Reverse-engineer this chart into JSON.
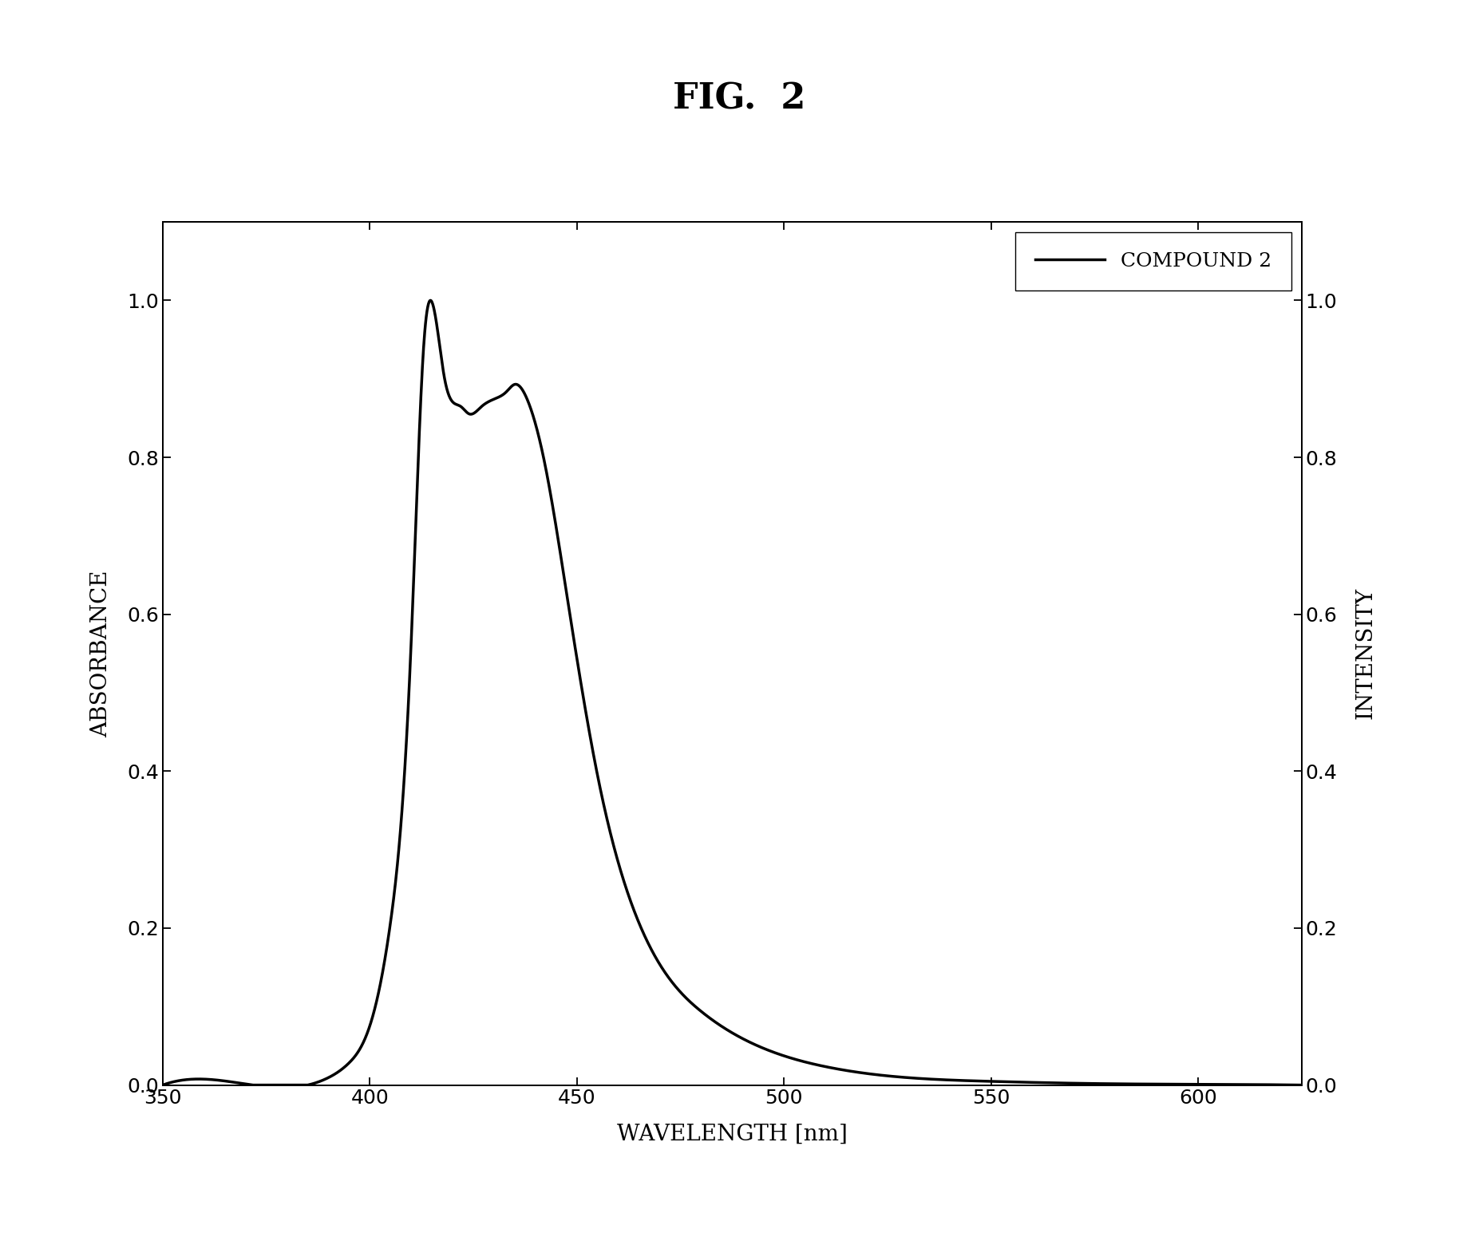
{
  "title": "FIG.  2",
  "xlabel": "WAVELENGTH [nm]",
  "ylabel_left": "ABSORBANCE",
  "ylabel_right": "INTENSITY",
  "legend_label": "COMPOUND 2",
  "xlim": [
    350,
    625
  ],
  "ylim": [
    0.0,
    1.1
  ],
  "xticks": [
    350,
    400,
    450,
    500,
    550,
    600
  ],
  "yticks": [
    0.0,
    0.2,
    0.4,
    0.6,
    0.8,
    1.0
  ],
  "line_color": "#000000",
  "line_width": 2.5,
  "background_color": "#ffffff",
  "title_fontsize": 32,
  "axis_label_fontsize": 20,
  "tick_fontsize": 18,
  "legend_fontsize": 18
}
